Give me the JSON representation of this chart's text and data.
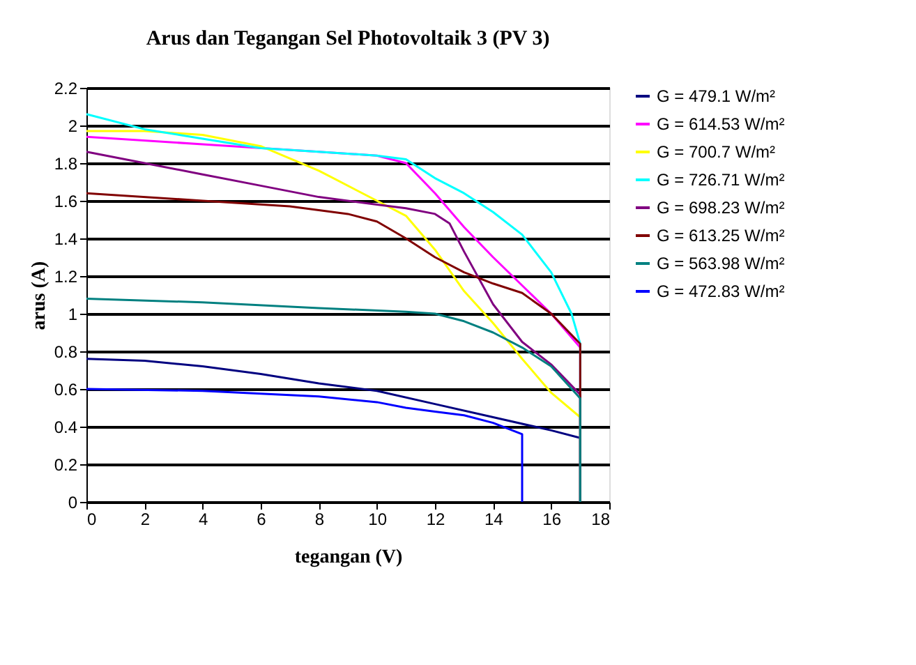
{
  "chart_data": {
    "type": "line",
    "title": "Arus dan Tegangan Sel Photovoltaik 3 (PV 3)",
    "xlabel": "tegangan (V)",
    "ylabel": "arus (A)",
    "xlim": [
      0,
      18
    ],
    "xticks": [
      0,
      2,
      4,
      6,
      8,
      10,
      12,
      14,
      16,
      18
    ],
    "ylim": [
      0,
      2.2
    ],
    "yticks": [
      0,
      0.2,
      0.4,
      0.6,
      0.8,
      1,
      1.2,
      1.4,
      1.6,
      1.8,
      2,
      2.2
    ],
    "grid": "y",
    "legend": "right",
    "marker": "none",
    "line_style": "solid",
    "series": [
      {
        "name": "G = 479.1 W/m²",
        "color": "#000080",
        "x": [
          0,
          2,
          4,
          6,
          8,
          10,
          12,
          14,
          16,
          17,
          17
        ],
        "values": [
          0.76,
          0.75,
          0.72,
          0.68,
          0.63,
          0.59,
          0.52,
          0.45,
          0.38,
          0.34,
          0
        ]
      },
      {
        "name": "G = 614.53 W/m²",
        "color": "#ff00ff",
        "x": [
          0,
          4,
          8,
          10,
          11,
          12,
          13,
          14,
          15,
          16,
          17,
          17
        ],
        "values": [
          1.94,
          1.9,
          1.86,
          1.84,
          1.8,
          1.64,
          1.46,
          1.3,
          1.15,
          1.0,
          0.82,
          0
        ]
      },
      {
        "name": "G = 700.7 W/m²",
        "color": "#ffff00",
        "x": [
          0,
          2,
          4,
          6,
          8,
          10,
          11,
          12,
          13,
          14,
          15,
          16,
          17,
          17
        ],
        "values": [
          1.97,
          1.97,
          1.95,
          1.89,
          1.76,
          1.6,
          1.52,
          1.34,
          1.12,
          0.95,
          0.76,
          0.58,
          0.45,
          0
        ]
      },
      {
        "name": "G = 726.71 W/m²",
        "color": "#00ffff",
        "x": [
          0,
          2,
          4,
          6,
          8,
          10,
          11,
          12,
          13,
          14,
          15,
          16,
          16.7,
          17,
          17
        ],
        "values": [
          2.06,
          1.98,
          1.93,
          1.88,
          1.86,
          1.84,
          1.82,
          1.72,
          1.64,
          1.54,
          1.42,
          1.22,
          1.0,
          0.84,
          0
        ]
      },
      {
        "name": "G = 698.23 W/m²",
        "color": "#800080",
        "x": [
          0,
          2,
          4,
          6,
          8,
          10,
          11,
          12,
          12.5,
          13,
          14,
          15,
          16,
          17,
          17
        ],
        "values": [
          1.86,
          1.8,
          1.74,
          1.68,
          1.62,
          1.58,
          1.56,
          1.53,
          1.48,
          1.33,
          1.05,
          0.85,
          0.73,
          0.57,
          0
        ]
      },
      {
        "name": "G = 613.25 W/m²",
        "color": "#800000",
        "x": [
          0,
          4,
          7,
          9,
          10,
          11,
          12,
          13,
          14,
          15,
          16,
          17,
          17
        ],
        "values": [
          1.64,
          1.6,
          1.57,
          1.53,
          1.49,
          1.4,
          1.3,
          1.22,
          1.16,
          1.11,
          1.0,
          0.84,
          0
        ]
      },
      {
        "name": "G = 563.98 W/m²",
        "color": "#008080",
        "x": [
          0,
          4,
          8,
          11,
          12,
          13,
          14,
          15,
          16,
          17,
          17
        ],
        "values": [
          1.08,
          1.06,
          1.03,
          1.01,
          1.0,
          0.96,
          0.9,
          0.82,
          0.72,
          0.55,
          0
        ]
      },
      {
        "name": "G = 472.83 W/m²",
        "color": "#0000ff",
        "x": [
          0,
          4,
          8,
          10,
          11,
          12,
          13,
          14,
          15,
          15
        ],
        "values": [
          0.6,
          0.59,
          0.56,
          0.53,
          0.5,
          0.48,
          0.46,
          0.42,
          0.36,
          0
        ]
      }
    ]
  }
}
